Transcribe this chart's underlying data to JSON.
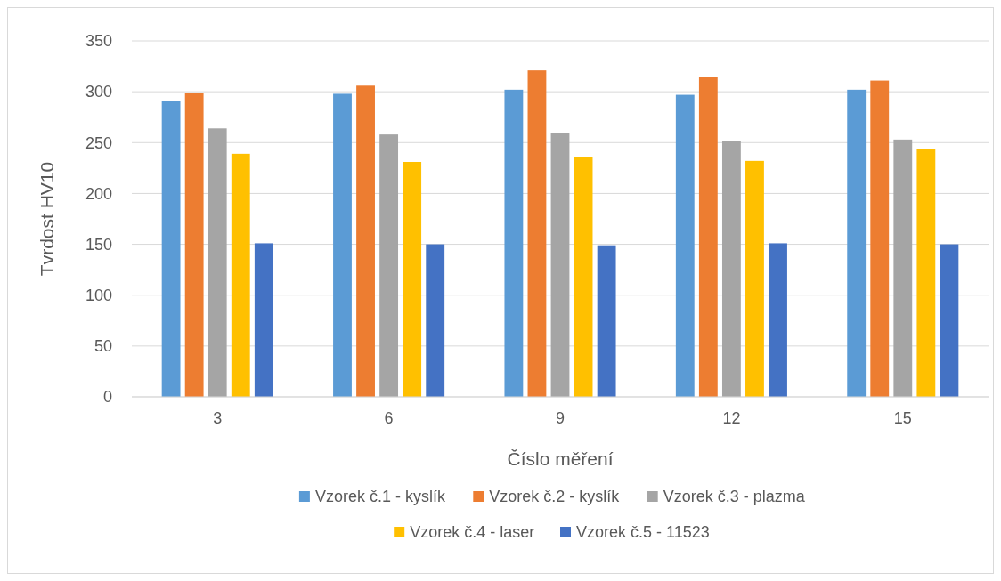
{
  "chart_data": {
    "type": "bar",
    "xlabel": "Číslo měření",
    "ylabel": "Tvrdost HV10",
    "categories": [
      "3",
      "6",
      "9",
      "12",
      "15"
    ],
    "series": [
      {
        "name": "Vzorek č.1 - kyslík",
        "color": "#5b9bd5",
        "values": [
          291,
          298,
          302,
          297,
          302
        ]
      },
      {
        "name": "Vzorek č.2 - kyslík",
        "color": "#ed7d31",
        "values": [
          299,
          306,
          321,
          315,
          311
        ]
      },
      {
        "name": "Vzorek č.3 - plazma",
        "color": "#a5a5a5",
        "values": [
          264,
          258,
          259,
          252,
          253
        ]
      },
      {
        "name": "Vzorek č.4 - laser",
        "color": "#ffc000",
        "values": [
          239,
          231,
          236,
          232,
          244
        ]
      },
      {
        "name": "Vzorek č.5 - 11523",
        "color": "#4472c4",
        "values": [
          151,
          150,
          149,
          151,
          150
        ]
      }
    ],
    "ylim": [
      0,
      350
    ],
    "yticks": [
      0,
      50,
      100,
      150,
      200,
      250,
      300,
      350
    ],
    "grid": "y",
    "legend": "bottom"
  }
}
